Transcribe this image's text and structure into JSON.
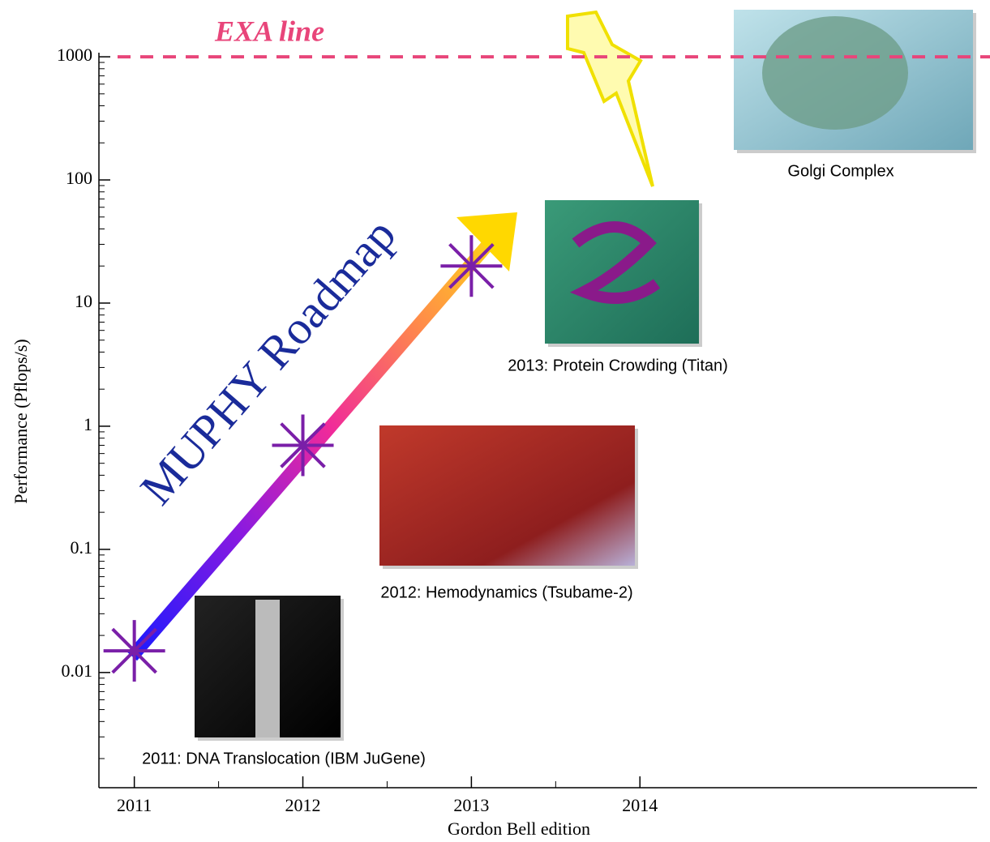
{
  "chart_data": {
    "type": "scatter",
    "x": [
      2011,
      2012,
      2013
    ],
    "series": [
      {
        "color": "#7a1fa8",
        "values": [
          0.015,
          0.7,
          20
        ]
      }
    ],
    "xlim": [
      2010.79,
      2016
    ],
    "xticks": [
      2011,
      2012,
      2013,
      2014
    ],
    "xminorticks": [
      2011.5,
      2012.5,
      2013.5
    ],
    "ylim": [
      0.00116,
      1080
    ],
    "yticks": [
      0.01,
      0.1,
      1,
      10,
      100,
      1000
    ],
    "log_y": true,
    "xlabel": "Gordon Bell edition",
    "ylabel": "Performance (Pflops/s)",
    "reference_line": {
      "value": 1000,
      "label": "EXA line",
      "color": "#e8457a"
    },
    "annotation": "MUPHY Roadmap",
    "captions": [
      "2011: DNA Translocation (IBM JuGene)",
      "2012: Hemodynamics (Tsubame-2)",
      "2013: Protein Crowding (Titan)",
      "Golgi Complex"
    ]
  }
}
